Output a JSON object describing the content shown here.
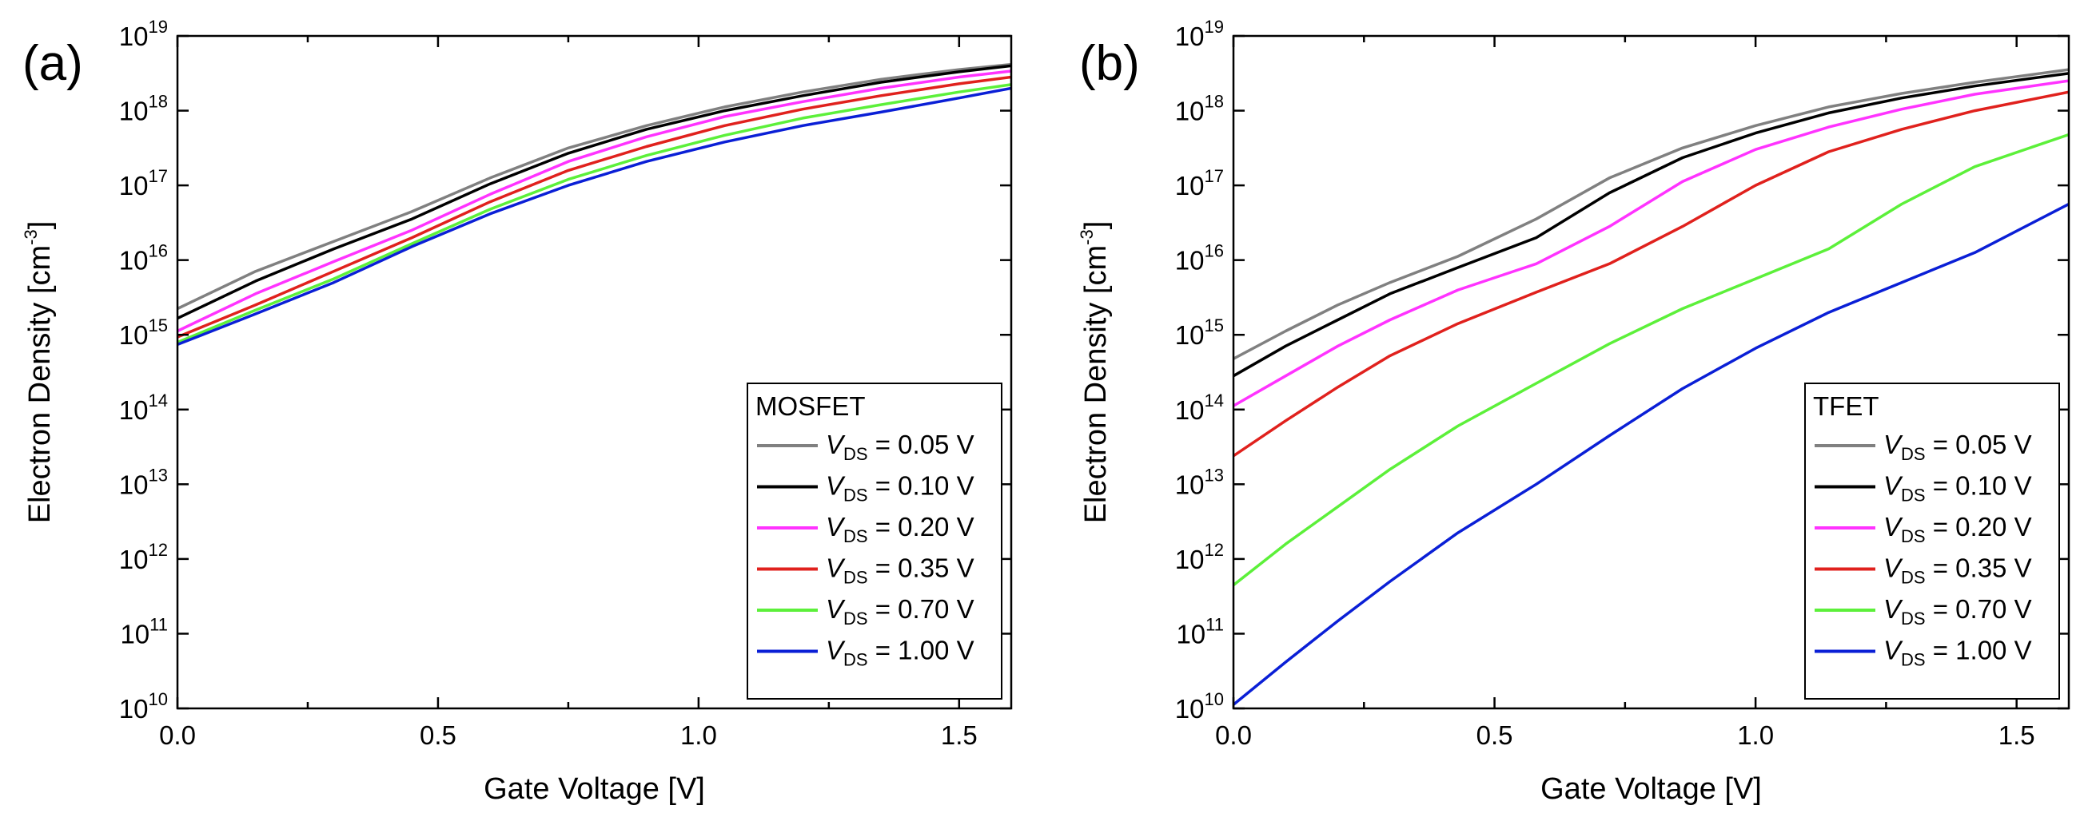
{
  "chart_data": [
    {
      "type": "line",
      "panel_label": "(a)",
      "xlabel": "Gate Voltage [V]",
      "ylabel": "Electron Density [cm",
      "ylabel_exponent": "-3",
      "ylabel_suffix": "]",
      "xlim": [
        0,
        1.6
      ],
      "ylim_log10": [
        10,
        19
      ],
      "yscale": "log",
      "grid": false,
      "legend_placement": "bottom-right",
      "legend_title": "MOSFET",
      "x_ticks": [
        {
          "value": 0.0,
          "label": "0.0"
        },
        {
          "value": 0.5,
          "label": "0.5"
        },
        {
          "value": 1.0,
          "label": "1.0"
        },
        {
          "value": 1.5,
          "label": "1.5"
        }
      ],
      "y_ticks": [
        {
          "exp": 10,
          "base": "10",
          "sup": "10"
        },
        {
          "exp": 11,
          "base": "10",
          "sup": "11"
        },
        {
          "exp": 12,
          "base": "10",
          "sup": "12"
        },
        {
          "exp": 13,
          "base": "10",
          "sup": "13"
        },
        {
          "exp": 14,
          "base": "10",
          "sup": "14"
        },
        {
          "exp": 15,
          "base": "10",
          "sup": "15"
        },
        {
          "exp": 16,
          "base": "10",
          "sup": "16"
        },
        {
          "exp": 17,
          "base": "10",
          "sup": "17"
        },
        {
          "exp": 18,
          "base": "10",
          "sup": "18"
        },
        {
          "exp": 19,
          "base": "10",
          "sup": "19"
        }
      ],
      "x": [
        0.0,
        0.15,
        0.3,
        0.45,
        0.6,
        0.75,
        0.9,
        1.05,
        1.2,
        1.35,
        1.5,
        1.6
      ],
      "series": [
        {
          "legend_v": "V",
          "legend_sub": "DS",
          "legend_rest": " = 0.05 V",
          "color": "#808080",
          "y_log10": [
            15.35,
            15.85,
            16.25,
            16.65,
            17.1,
            17.5,
            17.8,
            18.05,
            18.25,
            18.42,
            18.55,
            18.62
          ]
        },
        {
          "legend_v": "V",
          "legend_sub": "DS",
          "legend_rest": " = 0.10 V",
          "color": "#000000",
          "y_log10": [
            15.22,
            15.72,
            16.15,
            16.55,
            17.02,
            17.43,
            17.75,
            18.0,
            18.2,
            18.38,
            18.52,
            18.6
          ]
        },
        {
          "legend_v": "V",
          "legend_sub": "DS",
          "legend_rest": " = 0.20 V",
          "color": "#ff33ff",
          "y_log10": [
            15.05,
            15.55,
            15.98,
            16.4,
            16.88,
            17.32,
            17.65,
            17.92,
            18.12,
            18.3,
            18.45,
            18.53
          ]
        },
        {
          "legend_v": "V",
          "legend_sub": "DS",
          "legend_rest": " = 0.35 V",
          "color": "#e0211d",
          "y_log10": [
            14.97,
            15.4,
            15.85,
            16.3,
            16.78,
            17.2,
            17.52,
            17.8,
            18.02,
            18.2,
            18.36,
            18.45
          ]
        },
        {
          "legend_v": "V",
          "legend_sub": "DS",
          "legend_rest": " = 0.70 V",
          "color": "#5cf03a",
          "y_log10": [
            14.9,
            15.33,
            15.75,
            16.22,
            16.68,
            17.08,
            17.4,
            17.67,
            17.9,
            18.08,
            18.25,
            18.35
          ]
        },
        {
          "legend_v": "V",
          "legend_sub": "DS",
          "legend_rest": " = 1.00 V",
          "color": "#0a1fd6",
          "y_log10": [
            14.87,
            15.28,
            15.7,
            16.18,
            16.62,
            17.0,
            17.32,
            17.58,
            17.8,
            17.98,
            18.17,
            18.3
          ]
        }
      ]
    },
    {
      "type": "line",
      "panel_label": "(b)",
      "xlabel": "Gate Voltage [V]",
      "ylabel": "Electron Density [cm",
      "ylabel_exponent": "-3",
      "ylabel_suffix": "]",
      "xlim": [
        0,
        1.6
      ],
      "ylim_log10": [
        10,
        19
      ],
      "yscale": "log",
      "grid": false,
      "legend_placement": "bottom-right",
      "legend_title": "TFET",
      "x_ticks": [
        {
          "value": 0.0,
          "label": "0.0"
        },
        {
          "value": 0.5,
          "label": "0.5"
        },
        {
          "value": 1.0,
          "label": "1.0"
        },
        {
          "value": 1.5,
          "label": "1.5"
        }
      ],
      "y_ticks": [
        {
          "exp": 10,
          "base": "10",
          "sup": "10"
        },
        {
          "exp": 11,
          "base": "10",
          "sup": "11"
        },
        {
          "exp": 12,
          "base": "10",
          "sup": "12"
        },
        {
          "exp": 13,
          "base": "10",
          "sup": "13"
        },
        {
          "exp": 14,
          "base": "10",
          "sup": "14"
        },
        {
          "exp": 15,
          "base": "10",
          "sup": "15"
        },
        {
          "exp": 16,
          "base": "10",
          "sup": "16"
        },
        {
          "exp": 17,
          "base": "10",
          "sup": "17"
        },
        {
          "exp": 18,
          "base": "10",
          "sup": "18"
        },
        {
          "exp": 19,
          "base": "10",
          "sup": "19"
        }
      ],
      "x": [
        0.0,
        0.1,
        0.2,
        0.3,
        0.43,
        0.58,
        0.72,
        0.86,
        1.0,
        1.14,
        1.28,
        1.42,
        1.6
      ],
      "series": [
        {
          "legend_v": "V",
          "legend_sub": "DS",
          "legend_rest": " = 0.05 V",
          "color": "#808080",
          "y_log10": [
            14.68,
            15.05,
            15.4,
            15.7,
            16.05,
            16.55,
            17.1,
            17.5,
            17.8,
            18.05,
            18.23,
            18.38,
            18.55
          ]
        },
        {
          "legend_v": "V",
          "legend_sub": "DS",
          "legend_rest": " = 0.10 V",
          "color": "#000000",
          "y_log10": [
            14.45,
            14.85,
            15.2,
            15.55,
            15.9,
            16.3,
            16.9,
            17.37,
            17.7,
            17.97,
            18.17,
            18.33,
            18.5
          ]
        },
        {
          "legend_v": "V",
          "legend_sub": "DS",
          "legend_rest": " = 0.20 V",
          "color": "#ff33ff",
          "y_log10": [
            14.05,
            14.45,
            14.85,
            15.2,
            15.6,
            15.95,
            16.45,
            17.05,
            17.48,
            17.78,
            18.02,
            18.22,
            18.4
          ]
        },
        {
          "legend_v": "V",
          "legend_sub": "DS",
          "legend_rest": " = 0.35 V",
          "color": "#e0211d",
          "y_log10": [
            13.38,
            13.85,
            14.3,
            14.72,
            15.15,
            15.57,
            15.95,
            16.45,
            17.0,
            17.45,
            17.75,
            18.0,
            18.25
          ]
        },
        {
          "legend_v": "V",
          "legend_sub": "DS",
          "legend_rest": " = 0.70 V",
          "color": "#5cf03a",
          "y_log10": [
            11.65,
            12.2,
            12.7,
            13.2,
            13.78,
            14.35,
            14.88,
            15.35,
            15.75,
            16.15,
            16.75,
            17.25,
            17.68
          ]
        },
        {
          "legend_v": "V",
          "legend_sub": "DS",
          "legend_rest": " = 1.00 V",
          "color": "#0a1fd6",
          "y_log10": [
            10.05,
            10.62,
            11.17,
            11.7,
            12.35,
            13.0,
            13.65,
            14.28,
            14.82,
            15.3,
            15.7,
            16.1,
            16.75
          ]
        }
      ]
    }
  ]
}
